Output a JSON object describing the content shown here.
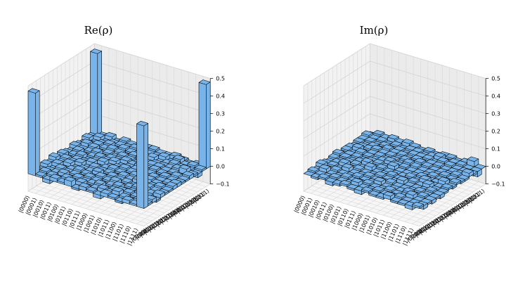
{
  "chart_data": [
    {
      "type": "bar3d",
      "title": "Re(ρ)",
      "color": "#78b4ea",
      "edgecolor": "#000000",
      "categories": [
        "|0000⟩",
        "|0001⟩",
        "|0010⟩",
        "|0011⟩",
        "|0100⟩",
        "|0101⟩",
        "|0110⟩",
        "|0111⟩",
        "|1000⟩",
        "|1001⟩",
        "|1010⟩",
        "|1011⟩",
        "|1100⟩",
        "|1101⟩",
        "|1110⟩",
        "|1111⟩"
      ],
      "zlim": [
        -0.1,
        0.5
      ],
      "zticks": [
        {
          "value": -0.1,
          "label": "−0.1"
        },
        {
          "value": 0,
          "label": "0.0"
        },
        0.1,
        0.2,
        0.3,
        0.4,
        0.5
      ],
      "values": [
        [
          0.47,
          0.01,
          -0.02,
          0.02,
          0.01,
          0.03,
          -0.01,
          0.02,
          0.01,
          -0.02,
          0.02,
          0.01,
          -0.01,
          0.02,
          0.01,
          0.47
        ],
        [
          0.01,
          0.02,
          0.01,
          -0.01,
          0.02,
          0.01,
          0.02,
          -0.02,
          0.01,
          0.02,
          0.01,
          0.03,
          0.01,
          -0.01,
          0.02,
          0.01
        ],
        [
          -0.02,
          0.01,
          0.01,
          0.02,
          -0.01,
          0.02,
          0.01,
          0.01,
          0.02,
          -0.01,
          0.01,
          0.02,
          0.02,
          0.01,
          -0.01,
          0.02
        ],
        [
          0.02,
          -0.01,
          0.02,
          0.01,
          0.01,
          -0.02,
          0.02,
          0.01,
          -0.01,
          0.01,
          0.02,
          -0.01,
          0.01,
          0.02,
          0.01,
          -0.01
        ],
        [
          0.01,
          0.02,
          -0.01,
          0.01,
          0.02,
          0.01,
          -0.01,
          0.02,
          0.01,
          0.02,
          -0.02,
          0.01,
          0.02,
          -0.01,
          0.01,
          0.02
        ],
        [
          0.03,
          0.01,
          0.02,
          -0.02,
          0.01,
          0.01,
          0.02,
          -0.01,
          0.02,
          0.01,
          0.01,
          -0.02,
          0.01,
          0.02,
          0.01,
          0.01
        ],
        [
          -0.01,
          0.02,
          0.01,
          0.02,
          -0.01,
          0.02,
          0.01,
          0.01,
          -0.02,
          0.02,
          0.01,
          0.02,
          -0.01,
          0.01,
          0.02,
          0.01
        ],
        [
          0.02,
          -0.02,
          0.01,
          0.01,
          0.02,
          -0.01,
          0.01,
          0.02,
          0.01,
          -0.01,
          0.02,
          0.01,
          0.02,
          0.01,
          -0.02,
          0.02
        ],
        [
          0.01,
          0.01,
          0.02,
          -0.01,
          0.01,
          0.02,
          -0.02,
          0.01,
          0.02,
          0.01,
          0.01,
          -0.01,
          0.02,
          0.01,
          0.01,
          0.02
        ],
        [
          -0.02,
          0.02,
          -0.01,
          0.01,
          0.02,
          0.01,
          0.02,
          -0.01,
          0.01,
          0.01,
          0.02,
          0.01,
          -0.01,
          0.02,
          0.01,
          0.01
        ],
        [
          0.02,
          0.01,
          0.01,
          0.02,
          -0.02,
          0.01,
          0.01,
          0.02,
          0.01,
          0.02,
          0.01,
          0.02,
          0.01,
          -0.02,
          0.02,
          0.01
        ],
        [
          0.01,
          0.03,
          0.02,
          -0.01,
          0.01,
          -0.02,
          0.02,
          0.01,
          -0.01,
          0.01,
          0.02,
          0.02,
          0.01,
          0.01,
          -0.01,
          0.02
        ],
        [
          -0.01,
          0.01,
          0.02,
          0.01,
          0.02,
          0.01,
          -0.01,
          0.02,
          0.02,
          -0.01,
          0.01,
          0.01,
          0.01,
          0.02,
          0.03,
          0.01
        ],
        [
          0.02,
          -0.01,
          0.01,
          0.02,
          -0.01,
          0.02,
          0.01,
          0.01,
          0.01,
          0.02,
          -0.02,
          0.01,
          0.02,
          0.01,
          0.01,
          -0.02
        ],
        [
          0.01,
          0.02,
          -0.01,
          0.01,
          0.01,
          0.01,
          0.02,
          -0.02,
          0.01,
          0.01,
          0.02,
          -0.01,
          0.03,
          0.01,
          0.02,
          0.01
        ],
        [
          0.47,
          0.01,
          0.02,
          -0.01,
          0.02,
          0.01,
          0.01,
          0.02,
          0.02,
          0.01,
          0.01,
          0.02,
          0.01,
          -0.02,
          0.01,
          0.48
        ]
      ]
    },
    {
      "type": "bar3d",
      "title": "Im(ρ)",
      "color": "#78b4ea",
      "edgecolor": "#000000",
      "categories": [
        "|0000⟩",
        "|0001⟩",
        "|0010⟩",
        "|0011⟩",
        "|0100⟩",
        "|0101⟩",
        "|0110⟩",
        "|0111⟩",
        "|1000⟩",
        "|1001⟩",
        "|1010⟩",
        "|1011⟩",
        "|1100⟩",
        "|1101⟩",
        "|1110⟩",
        "|1111⟩"
      ],
      "zlim": [
        -0.1,
        0.5
      ],
      "zticks": [
        {
          "value": -0.1,
          "label": "−0.1"
        },
        {
          "value": 0,
          "label": "0.0"
        },
        0.1,
        0.2,
        0.3,
        0.4,
        0.5
      ],
      "values": [
        [
          0,
          0.01,
          -0.01,
          0.02,
          0.01,
          -0.01,
          0.01,
          0.02,
          -0.01,
          0.01,
          0.01,
          -0.02,
          0.01,
          0.01,
          0.02,
          -0.01
        ],
        [
          -0.01,
          0,
          0.02,
          -0.01,
          0.01,
          0.01,
          -0.02,
          0.01,
          0.01,
          -0.01,
          0.02,
          0.01,
          -0.01,
          0.01,
          0.01,
          0.02
        ],
        [
          0.01,
          -0.02,
          0,
          0.01,
          -0.01,
          0.02,
          0.01,
          -0.01,
          0.01,
          0.02,
          -0.01,
          0.01,
          0.01,
          -0.02,
          0.01,
          0.01
        ],
        [
          -0.02,
          0.01,
          -0.01,
          0,
          0.02,
          -0.01,
          0.01,
          0.01,
          -0.02,
          0.01,
          0.01,
          0.02,
          -0.01,
          0.01,
          -0.01,
          0.02
        ],
        [
          -0.01,
          -0.01,
          0.01,
          -0.02,
          0,
          0.01,
          -0.01,
          0.02,
          0.01,
          -0.01,
          0.01,
          0.01,
          0.02,
          -0.01,
          0.01,
          0.01
        ],
        [
          0.01,
          -0.01,
          -0.02,
          0.01,
          -0.01,
          0,
          0.02,
          -0.01,
          0.01,
          0.01,
          -0.02,
          0.01,
          0.01,
          0.01,
          -0.01,
          0.02
        ],
        [
          -0.01,
          0.02,
          -0.01,
          -0.01,
          0.01,
          -0.02,
          0,
          0.01,
          -0.01,
          0.02,
          0.01,
          -0.01,
          0.01,
          -0.02,
          0.01,
          0.01
        ],
        [
          -0.02,
          -0.01,
          0.01,
          -0.01,
          -0.02,
          0.01,
          -0.01,
          0,
          0.02,
          0.01,
          -0.01,
          0.01,
          -0.02,
          0.01,
          0.01,
          -0.01
        ],
        [
          0.01,
          -0.01,
          -0.01,
          0.02,
          -0.01,
          -0.01,
          0.01,
          -0.02,
          0,
          0.01,
          0.02,
          -0.01,
          0.01,
          0.01,
          -0.02,
          0.01
        ],
        [
          -0.01,
          0.01,
          -0.02,
          -0.01,
          0.01,
          -0.01,
          -0.02,
          -0.01,
          -0.01,
          0,
          0.01,
          0.02,
          -0.01,
          0.01,
          0.01,
          -0.01
        ],
        [
          -0.01,
          -0.02,
          0.01,
          -0.01,
          -0.01,
          0.02,
          -0.01,
          0.01,
          -0.02,
          -0.01,
          0,
          0.01,
          0.01,
          -0.01,
          0.02,
          0.01
        ],
        [
          0.02,
          -0.01,
          -0.01,
          -0.02,
          -0.01,
          -0.01,
          0.01,
          -0.01,
          0.01,
          -0.02,
          -0.01,
          0,
          0.01,
          0.02,
          -0.01,
          0.01
        ],
        [
          -0.01,
          0.01,
          -0.01,
          0.01,
          -0.02,
          -0.01,
          -0.01,
          0.02,
          -0.01,
          0.01,
          -0.01,
          -0.01,
          0,
          0.01,
          0.01,
          -0.02
        ],
        [
          -0.01,
          -0.01,
          0.02,
          -0.01,
          0.01,
          -0.01,
          0.02,
          -0.01,
          -0.01,
          -0.01,
          0.01,
          -0.02,
          -0.01,
          0,
          0.01,
          0.01
        ],
        [
          -0.02,
          -0.01,
          -0.01,
          0.01,
          -0.01,
          0.01,
          -0.01,
          -0.01,
          0.02,
          -0.01,
          -0.02,
          0.01,
          -0.01,
          -0.01,
          0,
          0.03
        ],
        [
          0.01,
          -0.02,
          -0.01,
          -0.02,
          -0.01,
          -0.02,
          -0.01,
          0.01,
          -0.01,
          0.01,
          -0.01,
          -0.01,
          0.02,
          -0.01,
          -0.03,
          0
        ]
      ]
    }
  ]
}
